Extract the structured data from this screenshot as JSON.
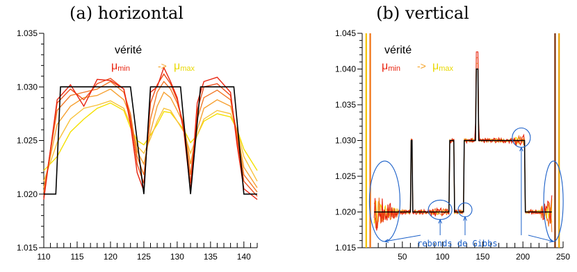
{
  "chart_data": [
    {
      "type": "line",
      "title": "(a) horizontal",
      "xlabel": "",
      "ylabel": "",
      "xlim": [
        110,
        142
      ],
      "ylim": [
        1.015,
        1.035
      ],
      "x_ticks": [
        110,
        115,
        120,
        125,
        130,
        135,
        140
      ],
      "y_ticks": [
        1.015,
        1.02,
        1.025,
        1.03,
        1.035
      ],
      "x_tick_labels": [
        "110",
        "115",
        "120",
        "125",
        "130",
        "135",
        "140"
      ],
      "y_tick_labels": [
        "1.015",
        "1.020",
        "1.025",
        "1.030",
        "1.035"
      ],
      "legend": {
        "placement": "top-left",
        "truth_label": "vérité",
        "mu_symbol": "μ",
        "min_sub": "min",
        "arrow": "->",
        "max_sub": "max"
      },
      "x": [
        110,
        112,
        114,
        116,
        118,
        120,
        122,
        123,
        124,
        125,
        126,
        127,
        128,
        129,
        130,
        131,
        132,
        133,
        134,
        136,
        138,
        139,
        140,
        142
      ],
      "truth": [
        [
          110,
          1.02
        ],
        [
          111.8,
          1.02
        ],
        [
          112.5,
          1.03
        ],
        [
          123,
          1.03
        ],
        [
          125,
          1.02
        ],
        [
          126,
          1.03
        ],
        [
          130.5,
          1.03
        ],
        [
          132,
          1.02
        ],
        [
          133.5,
          1.03
        ],
        [
          138.5,
          1.03
        ],
        [
          140,
          1.02
        ],
        [
          142,
          1.02
        ]
      ],
      "series": [
        {
          "color": "#e8230f",
          "values": [
            1.0195,
            1.0288,
            1.0302,
            1.0282,
            1.0307,
            1.0306,
            1.0298,
            1.0265,
            1.022,
            1.0203,
            1.0295,
            1.03,
            1.0318,
            1.0305,
            1.029,
            1.0258,
            1.0203,
            1.0285,
            1.0305,
            1.0309,
            1.0295,
            1.0245,
            1.0205,
            1.0195
          ]
        },
        {
          "color": "#ee4d1a",
          "values": [
            1.0198,
            1.0285,
            1.0298,
            1.0288,
            1.0303,
            1.0308,
            1.0298,
            1.027,
            1.0228,
            1.021,
            1.0285,
            1.0302,
            1.0312,
            1.0303,
            1.0288,
            1.0262,
            1.021,
            1.0278,
            1.03,
            1.0303,
            1.0292,
            1.025,
            1.0212,
            1.0198
          ]
        },
        {
          "color": "#f27826",
          "values": [
            1.0202,
            1.0278,
            1.0292,
            1.0295,
            1.0298,
            1.0305,
            1.0295,
            1.0275,
            1.0235,
            1.0218,
            1.027,
            1.0295,
            1.0305,
            1.0298,
            1.0285,
            1.0265,
            1.0218,
            1.027,
            1.029,
            1.0297,
            1.0288,
            1.0255,
            1.0218,
            1.0202
          ]
        },
        {
          "color": "#f6a030",
          "values": [
            1.0206,
            1.0265,
            1.0282,
            1.029,
            1.0292,
            1.0298,
            1.0288,
            1.0272,
            1.024,
            1.0228,
            1.0258,
            1.0282,
            1.0295,
            1.029,
            1.0278,
            1.0265,
            1.0228,
            1.026,
            1.028,
            1.0288,
            1.0282,
            1.0258,
            1.0225,
            1.0206
          ]
        },
        {
          "color": "#f8c23c",
          "values": [
            1.0212,
            1.0248,
            1.027,
            1.028,
            1.0283,
            1.0287,
            1.028,
            1.0265,
            1.0245,
            1.0238,
            1.0252,
            1.0268,
            1.028,
            1.0278,
            1.0268,
            1.0258,
            1.0238,
            1.0255,
            1.027,
            1.0278,
            1.0275,
            1.026,
            1.0235,
            1.0212
          ]
        },
        {
          "color": "#f4e000",
          "values": [
            1.0222,
            1.0235,
            1.0258,
            1.027,
            1.028,
            1.0285,
            1.0278,
            1.0262,
            1.025,
            1.0246,
            1.0255,
            1.0265,
            1.0277,
            1.0276,
            1.0268,
            1.026,
            1.0248,
            1.0255,
            1.0268,
            1.0275,
            1.0272,
            1.026,
            1.0242,
            1.0222
          ]
        }
      ]
    },
    {
      "type": "line",
      "title": "(b) vertical",
      "xlabel": "",
      "ylabel": "",
      "xlim": [
        0,
        250
      ],
      "ylim": [
        1.015,
        1.045
      ],
      "x_ticks": [
        50,
        100,
        150,
        200,
        250
      ],
      "y_ticks": [
        1.015,
        1.02,
        1.025,
        1.03,
        1.035,
        1.04,
        1.045
      ],
      "x_tick_labels": [
        "50",
        "100",
        "150",
        "200",
        "250"
      ],
      "y_tick_labels": [
        "1.015",
        "1.020",
        "1.025",
        "1.030",
        "1.035",
        "1.040",
        "1.045"
      ],
      "legend": {
        "placement": "top-left",
        "truth_label": "vérité",
        "mu_symbol": "μ",
        "min_sub": "min",
        "arrow": "->",
        "max_sub": "max"
      },
      "truth": [
        [
          15,
          1.02
        ],
        [
          60,
          1.02
        ],
        [
          61,
          1.03
        ],
        [
          62,
          1.03
        ],
        [
          63,
          1.02
        ],
        [
          108,
          1.02
        ],
        [
          109,
          1.03
        ],
        [
          114,
          1.03
        ],
        [
          115,
          1.02
        ],
        [
          125,
          1.02
        ],
        [
          126,
          1.02
        ],
        [
          127,
          1.03
        ],
        [
          136,
          1.03
        ],
        [
          141,
          1.03
        ],
        [
          142,
          1.04
        ],
        [
          144,
          1.04
        ],
        [
          145,
          1.03
        ],
        [
          202,
          1.03
        ],
        [
          203,
          1.02
        ],
        [
          236,
          1.02
        ]
      ],
      "annotation": {
        "text": "rebonds de Gibbs",
        "color": "#1a5fc8",
        "targets": [
          {
            "cx": 28,
            "cy": 1.0215
          },
          {
            "cx": 97,
            "cy": 1.0203
          },
          {
            "cx": 128,
            "cy": 1.0203
          },
          {
            "cx": 198,
            "cy": 1.0304
          },
          {
            "cx": 238,
            "cy": 1.0215
          }
        ]
      },
      "boundary_bars": [
        5,
        10,
        240,
        245
      ],
      "series": [
        {
          "color": "#e8230f"
        },
        {
          "color": "#f27826"
        },
        {
          "color": "#f8c23c"
        },
        {
          "color": "#f4e000"
        }
      ]
    }
  ]
}
